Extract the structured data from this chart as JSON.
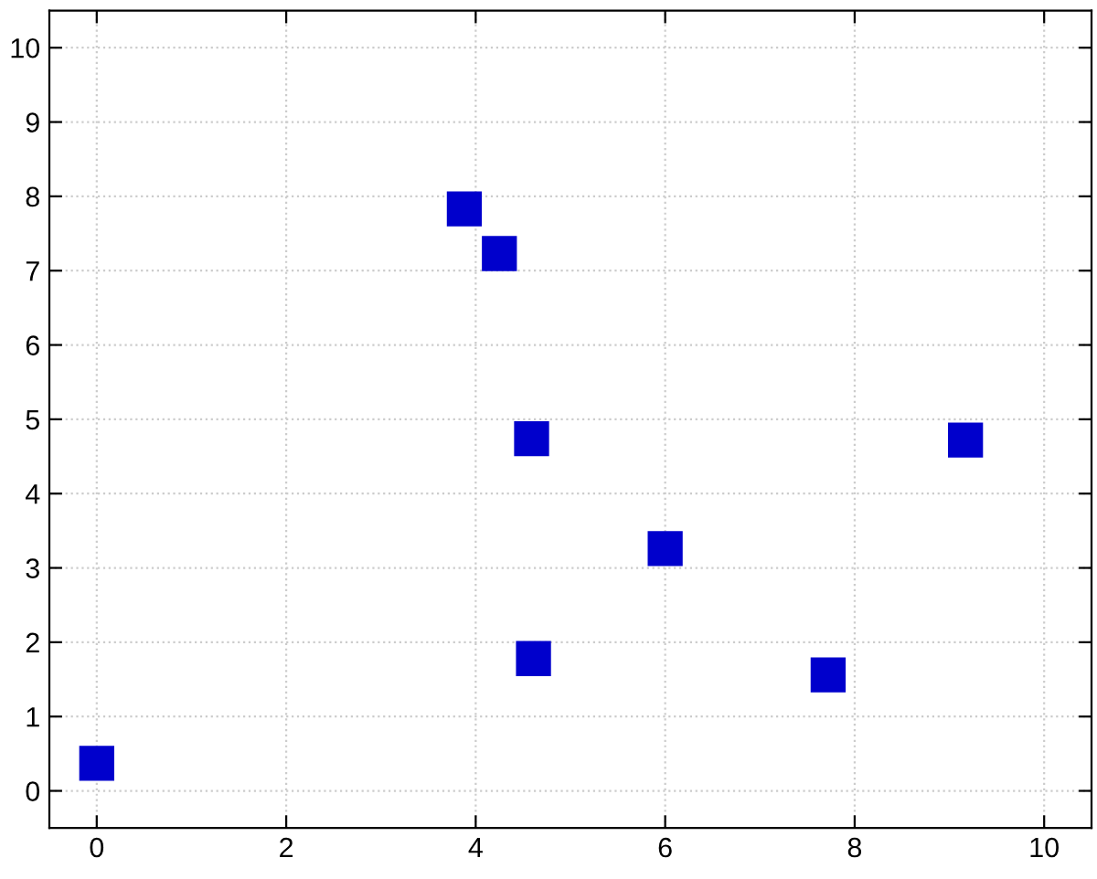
{
  "chart_data": {
    "type": "scatter",
    "x": [
      0,
      3.88,
      4.25,
      4.59,
      4.61,
      6.0,
      7.72,
      9.17
    ],
    "values": [
      0.37,
      7.83,
      7.23,
      4.74,
      1.78,
      3.26,
      1.56,
      4.72
    ],
    "color": "#0000cc",
    "marker": "square",
    "grid": true,
    "xlim": [
      -0.5,
      10.5
    ],
    "ylim": [
      -0.5,
      10.5
    ],
    "xticks": [
      0,
      2,
      4,
      6,
      8,
      10
    ],
    "yticks": [
      0,
      1,
      2,
      3,
      4,
      5,
      6,
      7,
      8,
      9,
      10
    ]
  }
}
